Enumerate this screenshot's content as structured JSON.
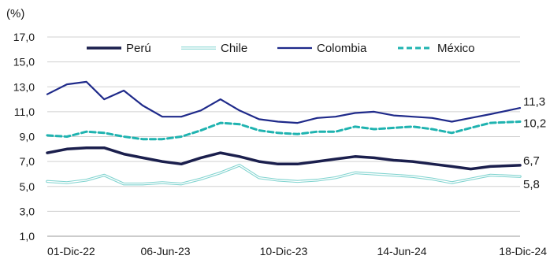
{
  "chart_data": {
    "type": "line",
    "unit_label": "(%)",
    "title": "",
    "xlabel": "",
    "ylabel": "",
    "ylim": [
      1,
      17
    ],
    "yticks": [
      "1,0",
      "3,0",
      "5,0",
      "7,0",
      "9,0",
      "11,0",
      "13,0",
      "15,0",
      "17,0"
    ],
    "ytick_values": [
      1,
      3,
      5,
      7,
      9,
      11,
      13,
      15,
      17
    ],
    "x_range": [
      "2022-12-01",
      "2024-12-18"
    ],
    "xticks": [
      {
        "label": "01-Dic-22",
        "date": "2022-12-01"
      },
      {
        "label": "06-Jun-23",
        "date": "2023-06-06"
      },
      {
        "label": "10-Dic-23",
        "date": "2023-12-10"
      },
      {
        "label": "14-Jun-24",
        "date": "2024-06-14"
      },
      {
        "label": "18-Dic-24",
        "date": "2024-12-18"
      }
    ],
    "grid": "horizontal",
    "legend_position": "top",
    "series": [
      {
        "name": "Perú",
        "color": "#1b1f4d",
        "style": "solid-thick",
        "end_label": "6,7",
        "x": [
          "2022-12-01",
          "2023-01-01",
          "2023-02-01",
          "2023-03-01",
          "2023-04-01",
          "2023-05-01",
          "2023-06-01",
          "2023-07-01",
          "2023-08-01",
          "2023-09-01",
          "2023-10-01",
          "2023-11-01",
          "2023-12-01",
          "2024-01-01",
          "2024-02-01",
          "2024-03-01",
          "2024-04-01",
          "2024-05-01",
          "2024-06-01",
          "2024-07-01",
          "2024-08-01",
          "2024-09-01",
          "2024-10-01",
          "2024-11-01",
          "2024-12-18"
        ],
        "values": [
          7.7,
          8.0,
          8.1,
          8.1,
          7.6,
          7.3,
          7.0,
          6.8,
          7.3,
          7.7,
          7.4,
          7.0,
          6.8,
          6.8,
          7.0,
          7.2,
          7.4,
          7.3,
          7.1,
          7.0,
          6.8,
          6.6,
          6.4,
          6.6,
          6.7
        ]
      },
      {
        "name": "Chile",
        "color": "#7fd3cf",
        "style": "double",
        "end_label": "5,8",
        "x": [
          "2022-12-01",
          "2023-01-01",
          "2023-02-01",
          "2023-03-01",
          "2023-04-01",
          "2023-05-01",
          "2023-06-01",
          "2023-07-01",
          "2023-08-01",
          "2023-09-01",
          "2023-10-01",
          "2023-11-01",
          "2023-12-01",
          "2024-01-01",
          "2024-02-01",
          "2024-03-01",
          "2024-04-01",
          "2024-05-01",
          "2024-06-01",
          "2024-07-01",
          "2024-08-01",
          "2024-09-01",
          "2024-10-01",
          "2024-11-01",
          "2024-12-18"
        ],
        "values": [
          5.4,
          5.3,
          5.5,
          5.9,
          5.2,
          5.2,
          5.3,
          5.2,
          5.6,
          6.1,
          6.7,
          5.7,
          5.5,
          5.4,
          5.5,
          5.7,
          6.1,
          6.0,
          5.9,
          5.8,
          5.6,
          5.3,
          5.6,
          5.9,
          5.8
        ]
      },
      {
        "name": "Colombia",
        "color": "#1f2a8a",
        "style": "solid",
        "end_label": "11,3",
        "x": [
          "2022-12-01",
          "2023-01-01",
          "2023-02-01",
          "2023-03-01",
          "2023-04-01",
          "2023-05-01",
          "2023-06-01",
          "2023-07-01",
          "2023-08-01",
          "2023-09-01",
          "2023-10-01",
          "2023-11-01",
          "2023-12-01",
          "2024-01-01",
          "2024-02-01",
          "2024-03-01",
          "2024-04-01",
          "2024-05-01",
          "2024-06-01",
          "2024-07-01",
          "2024-08-01",
          "2024-09-01",
          "2024-10-01",
          "2024-11-01",
          "2024-12-18"
        ],
        "values": [
          12.4,
          13.2,
          13.4,
          12.0,
          12.7,
          11.5,
          10.6,
          10.6,
          11.1,
          12.0,
          11.1,
          10.4,
          10.2,
          10.1,
          10.5,
          10.6,
          10.9,
          11.0,
          10.7,
          10.6,
          10.5,
          10.2,
          10.5,
          10.8,
          11.3
        ]
      },
      {
        "name": "México",
        "color": "#1fb3b0",
        "style": "dashed",
        "end_label": "10,2",
        "x": [
          "2022-12-01",
          "2023-01-01",
          "2023-02-01",
          "2023-03-01",
          "2023-04-01",
          "2023-05-01",
          "2023-06-01",
          "2023-07-01",
          "2023-08-01",
          "2023-09-01",
          "2023-10-01",
          "2023-11-01",
          "2023-12-01",
          "2024-01-01",
          "2024-02-01",
          "2024-03-01",
          "2024-04-01",
          "2024-05-01",
          "2024-06-01",
          "2024-07-01",
          "2024-08-01",
          "2024-09-01",
          "2024-10-01",
          "2024-11-01",
          "2024-12-18"
        ],
        "values": [
          9.1,
          9.0,
          9.4,
          9.3,
          9.0,
          8.8,
          8.8,
          9.0,
          9.5,
          10.1,
          10.0,
          9.5,
          9.3,
          9.2,
          9.4,
          9.4,
          9.8,
          9.6,
          9.7,
          9.8,
          9.6,
          9.3,
          9.7,
          10.1,
          10.2
        ]
      }
    ]
  }
}
